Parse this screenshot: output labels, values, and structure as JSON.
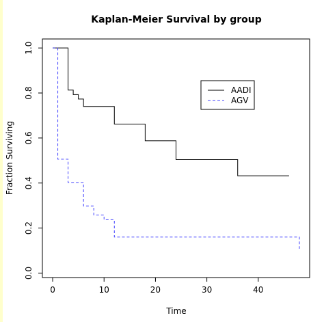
{
  "chart_data": {
    "type": "line",
    "title": "Kaplan-Meier Survival by group",
    "xlabel": "Time",
    "ylabel": "Fraction Surviving",
    "xlim": [
      -2,
      50
    ],
    "ylim": [
      -0.02,
      1.04
    ],
    "x_ticks": [
      0,
      10,
      20,
      30,
      40
    ],
    "y_ticks": [
      0.0,
      0.2,
      0.4,
      0.6,
      0.8,
      1.0
    ],
    "x_tick_labels": [
      "0",
      "10",
      "20",
      "30",
      "40"
    ],
    "y_tick_labels": [
      "0.0",
      "0.2",
      "0.4",
      "0.6",
      "0.8",
      "1.0"
    ],
    "legend_position": "top-right",
    "series": [
      {
        "name": "AADI",
        "color": "#000000",
        "linestyle": "solid",
        "step_x": [
          0,
          3,
          4,
          5,
          6,
          12,
          18,
          24,
          36,
          46
        ],
        "step_y": [
          1.0,
          0.813,
          0.793,
          0.773,
          0.74,
          0.662,
          0.588,
          0.504,
          0.432,
          0.432
        ]
      },
      {
        "name": "AGV",
        "color": "#4040ff",
        "linestyle": "dashed",
        "step_x": [
          0,
          1,
          3,
          6,
          8,
          10,
          12,
          48
        ],
        "step_y": [
          1.0,
          0.506,
          0.402,
          0.298,
          0.258,
          0.237,
          0.16,
          0.108
        ]
      }
    ]
  }
}
